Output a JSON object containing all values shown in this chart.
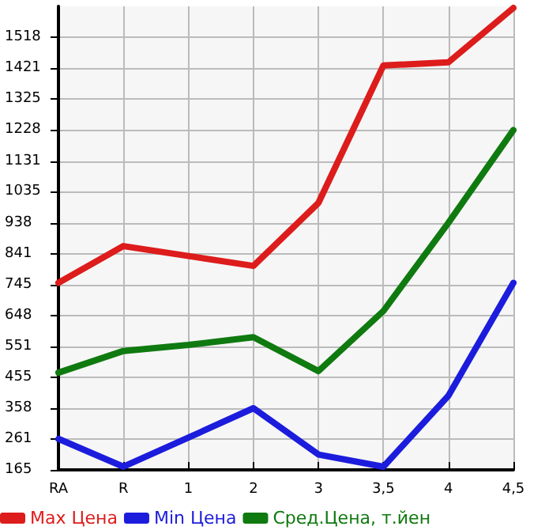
{
  "chart_data": {
    "type": "line",
    "categories": [
      "RA",
      "R",
      "1",
      "2",
      "3",
      "3,5",
      "4",
      "4,5"
    ],
    "series": [
      {
        "name": "Max Цена",
        "color": "#dd1c1c",
        "values": [
          750,
          865,
          834,
          803,
          1000,
          1430,
          1440,
          1610
        ]
      },
      {
        "name": "Min Цена",
        "color": "#1c1cdd",
        "values": [
          262,
          175,
          266,
          358,
          213,
          175,
          397,
          750
        ]
      },
      {
        "name": "Сред.Цена, т.йен",
        "color": "#0f7a0f",
        "values": [
          469,
          537,
          556,
          580,
          474,
          662,
          938,
          1228
        ]
      }
    ],
    "ylim": [
      165,
      1615
    ],
    "yticks": [
      165,
      261,
      358,
      455,
      551,
      648,
      745,
      841,
      938,
      1035,
      1131,
      1228,
      1325,
      1421,
      1518
    ],
    "grid": true,
    "legend": "bottom",
    "marker": "none",
    "line_style": "solid"
  }
}
